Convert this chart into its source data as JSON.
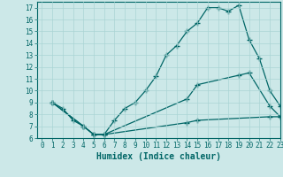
{
  "title": "",
  "xlabel": "Humidex (Indice chaleur)",
  "bg_color": "#cce8e8",
  "line_color": "#006666",
  "grid_color": "#aad4d4",
  "xlim": [
    -0.5,
    23
  ],
  "ylim": [
    6,
    17.5
  ],
  "xticks": [
    0,
    1,
    2,
    3,
    4,
    5,
    6,
    7,
    8,
    9,
    10,
    11,
    12,
    13,
    14,
    15,
    16,
    17,
    18,
    19,
    20,
    21,
    22,
    23
  ],
  "yticks": [
    6,
    7,
    8,
    9,
    10,
    11,
    12,
    13,
    14,
    15,
    16,
    17
  ],
  "curve1_x": [
    1,
    2,
    3,
    4,
    5,
    6,
    7,
    8,
    9,
    10,
    11,
    12,
    13,
    14,
    15,
    16,
    17,
    18,
    19,
    20,
    21,
    22,
    23
  ],
  "curve1_y": [
    9.0,
    8.5,
    7.5,
    7.0,
    6.3,
    6.3,
    7.5,
    8.5,
    9.0,
    10.0,
    11.2,
    13.0,
    13.8,
    15.0,
    15.7,
    17.0,
    17.0,
    16.7,
    17.2,
    14.3,
    12.7,
    10.0,
    8.7
  ],
  "curve2_x": [
    1,
    4,
    5,
    6,
    14,
    15,
    19,
    20,
    22,
    23
  ],
  "curve2_y": [
    9.0,
    7.0,
    6.3,
    6.3,
    9.3,
    10.5,
    11.3,
    11.5,
    8.7,
    7.8
  ],
  "curve3_x": [
    1,
    4,
    5,
    6,
    14,
    15,
    22,
    23
  ],
  "curve3_y": [
    9.0,
    7.0,
    6.3,
    6.3,
    7.3,
    7.5,
    7.8,
    7.8
  ],
  "marker": "+",
  "markersize": 4,
  "linewidth": 0.9,
  "tick_fontsize": 5.5,
  "xlabel_fontsize": 7
}
